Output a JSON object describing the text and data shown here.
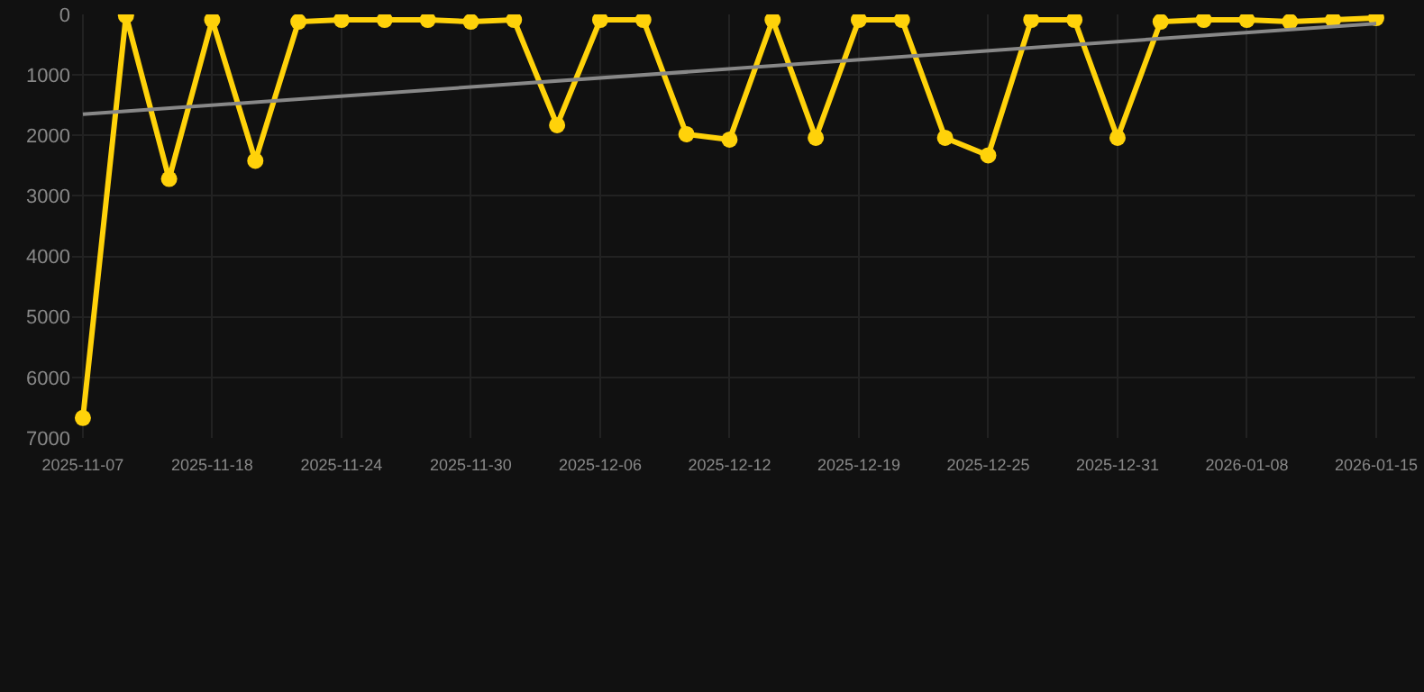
{
  "chart_data": {
    "type": "line",
    "categories": [
      "2025-11-07",
      null,
      null,
      "2025-11-18",
      null,
      null,
      "2025-11-24",
      null,
      null,
      "2025-11-30",
      null,
      null,
      "2025-12-06",
      null,
      null,
      "2025-12-12",
      null,
      null,
      "2025-12-19",
      null,
      null,
      "2025-12-25",
      null,
      null,
      "2025-12-31",
      null,
      null,
      "2026-01-08",
      null,
      null,
      "2026-01-15"
    ],
    "series": [
      {
        "color": "#ffd20a",
        "marker": "circle",
        "values": [
          6670,
          20,
          2720,
          90,
          2420,
          120,
          90,
          90,
          90,
          120,
          90,
          1830,
          90,
          90,
          1980,
          2070,
          90,
          2040,
          90,
          90,
          2040,
          2330,
          90,
          90,
          2040,
          120,
          90,
          90,
          120,
          90,
          60
        ]
      },
      {
        "color": "#888888",
        "marker": "none",
        "values": [
          1650,
          null,
          null,
          null,
          null,
          null,
          null,
          null,
          null,
          null,
          null,
          null,
          null,
          null,
          null,
          null,
          null,
          null,
          null,
          null,
          null,
          null,
          null,
          null,
          null,
          null,
          null,
          null,
          null,
          null,
          150
        ]
      }
    ],
    "ylim": [
      7000,
      0
    ],
    "yticks": [
      0,
      1000,
      2000,
      3000,
      4000,
      5000,
      6000,
      7000
    ],
    "grid": true
  }
}
